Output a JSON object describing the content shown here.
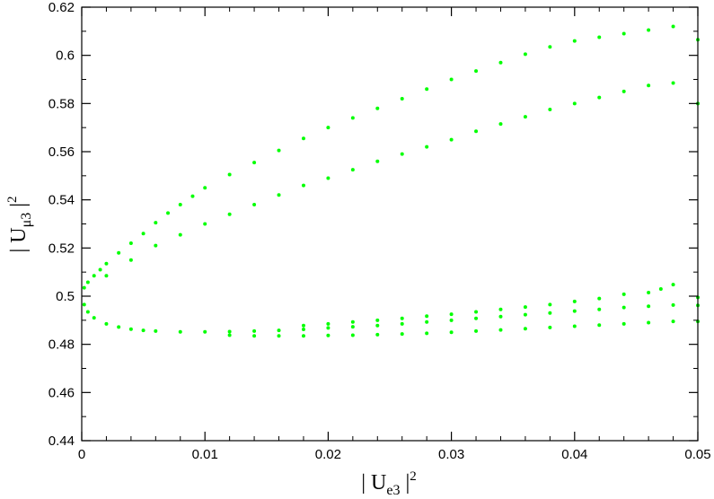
{
  "chart_data": {
    "type": "scatter",
    "title": "",
    "xlabel": "| U_e3 |^2",
    "ylabel": "| U_μ3 |^2",
    "xlabel_parts": {
      "bar_left": "|",
      "base": "U",
      "sub": "e3",
      "bar_right": "|",
      "sup": "2"
    },
    "ylabel_parts": {
      "bar_left": "|",
      "base": "U",
      "sub": "μ3",
      "bar_right": "|",
      "sup": "2"
    },
    "xlim": [
      0,
      0.05
    ],
    "ylim": [
      0.44,
      0.62
    ],
    "x_ticks": [
      {
        "v": 0,
        "label": "0"
      },
      {
        "v": 0.01,
        "label": "0.01"
      },
      {
        "v": 0.02,
        "label": "0.02"
      },
      {
        "v": 0.03,
        "label": "0.03"
      },
      {
        "v": 0.04,
        "label": "0.04"
      },
      {
        "v": 0.05,
        "label": "0.05"
      }
    ],
    "y_ticks": [
      {
        "v": 0.44,
        "label": "0.44"
      },
      {
        "v": 0.46,
        "label": "0.46"
      },
      {
        "v": 0.48,
        "label": "0.48"
      },
      {
        "v": 0.5,
        "label": "0.5"
      },
      {
        "v": 0.52,
        "label": "0.52"
      },
      {
        "v": 0.54,
        "label": "0.54"
      },
      {
        "v": 0.56,
        "label": "0.56"
      },
      {
        "v": 0.58,
        "label": "0.58"
      },
      {
        "v": 0.6,
        "label": "0.6"
      },
      {
        "v": 0.62,
        "label": "0.62"
      }
    ],
    "grid": false,
    "legend": "none",
    "marker_color": "#00ff00",
    "series": [
      {
        "points": [
          [
            0.0002,
            0.5035
          ],
          [
            0.0005,
            0.5058
          ],
          [
            0.001,
            0.5085
          ],
          [
            0.0015,
            0.511
          ],
          [
            0.002,
            0.5135
          ],
          [
            0.003,
            0.518
          ],
          [
            0.004,
            0.522
          ],
          [
            0.005,
            0.526
          ],
          [
            0.006,
            0.5305
          ],
          [
            0.007,
            0.5345
          ],
          [
            0.008,
            0.538
          ],
          [
            0.009,
            0.5415
          ],
          [
            0.01,
            0.545
          ],
          [
            0.012,
            0.5505
          ],
          [
            0.014,
            0.5555
          ],
          [
            0.016,
            0.5605
          ],
          [
            0.018,
            0.5655
          ],
          [
            0.02,
            0.57
          ],
          [
            0.022,
            0.574
          ],
          [
            0.024,
            0.578
          ],
          [
            0.026,
            0.582
          ],
          [
            0.028,
            0.586
          ],
          [
            0.03,
            0.59
          ],
          [
            0.032,
            0.5935
          ],
          [
            0.034,
            0.597
          ],
          [
            0.036,
            0.6005
          ],
          [
            0.038,
            0.6035
          ],
          [
            0.04,
            0.606
          ],
          [
            0.042,
            0.6075
          ],
          [
            0.044,
            0.609
          ],
          [
            0.046,
            0.6105
          ],
          [
            0.048,
            0.612
          ],
          [
            0.05,
            0.6065
          ],
          [
            0.002,
            0.5085
          ],
          [
            0.004,
            0.515
          ],
          [
            0.006,
            0.521
          ],
          [
            0.008,
            0.5255
          ],
          [
            0.01,
            0.53
          ],
          [
            0.012,
            0.534
          ],
          [
            0.014,
            0.538
          ],
          [
            0.016,
            0.542
          ],
          [
            0.018,
            0.546
          ],
          [
            0.02,
            0.549
          ],
          [
            0.022,
            0.5525
          ],
          [
            0.024,
            0.556
          ],
          [
            0.026,
            0.559
          ],
          [
            0.028,
            0.562
          ],
          [
            0.03,
            0.565
          ],
          [
            0.032,
            0.5685
          ],
          [
            0.034,
            0.5715
          ],
          [
            0.036,
            0.5745
          ],
          [
            0.038,
            0.5775
          ],
          [
            0.04,
            0.58
          ],
          [
            0.042,
            0.5825
          ],
          [
            0.044,
            0.585
          ],
          [
            0.046,
            0.5875
          ],
          [
            0.048,
            0.5885
          ],
          [
            0.05,
            0.58
          ],
          [
            0.0002,
            0.4965
          ],
          [
            0.0005,
            0.4935
          ],
          [
            0.001,
            0.491
          ],
          [
            0.002,
            0.4885
          ],
          [
            0.003,
            0.4872
          ],
          [
            0.004,
            0.4863
          ],
          [
            0.005,
            0.4858
          ],
          [
            0.006,
            0.4855
          ],
          [
            0.008,
            0.4852
          ],
          [
            0.01,
            0.4852
          ],
          [
            0.012,
            0.4853
          ],
          [
            0.014,
            0.4855
          ],
          [
            0.016,
            0.4858
          ],
          [
            0.018,
            0.4862
          ],
          [
            0.02,
            0.4868
          ],
          [
            0.022,
            0.4873
          ],
          [
            0.024,
            0.4878
          ],
          [
            0.026,
            0.4885
          ],
          [
            0.028,
            0.4893
          ],
          [
            0.03,
            0.49
          ],
          [
            0.032,
            0.4908
          ],
          [
            0.034,
            0.4915
          ],
          [
            0.036,
            0.4923
          ],
          [
            0.038,
            0.493
          ],
          [
            0.04,
            0.4938
          ],
          [
            0.042,
            0.4945
          ],
          [
            0.044,
            0.4953
          ],
          [
            0.046,
            0.4958
          ],
          [
            0.048,
            0.4963
          ],
          [
            0.05,
            0.4962
          ],
          [
            0.012,
            0.4838
          ],
          [
            0.014,
            0.4835
          ],
          [
            0.016,
            0.4835
          ],
          [
            0.018,
            0.4835
          ],
          [
            0.02,
            0.4837
          ],
          [
            0.022,
            0.4838
          ],
          [
            0.024,
            0.484
          ],
          [
            0.026,
            0.4843
          ],
          [
            0.028,
            0.4846
          ],
          [
            0.03,
            0.485
          ],
          [
            0.032,
            0.4855
          ],
          [
            0.034,
            0.486
          ],
          [
            0.036,
            0.4865
          ],
          [
            0.038,
            0.487
          ],
          [
            0.04,
            0.4875
          ],
          [
            0.042,
            0.488
          ],
          [
            0.044,
            0.4885
          ],
          [
            0.046,
            0.489
          ],
          [
            0.048,
            0.4895
          ],
          [
            0.05,
            0.4895
          ],
          [
            0.018,
            0.4878
          ],
          [
            0.02,
            0.4885
          ],
          [
            0.022,
            0.4893
          ],
          [
            0.024,
            0.49
          ],
          [
            0.026,
            0.4908
          ],
          [
            0.028,
            0.4917
          ],
          [
            0.03,
            0.4925
          ],
          [
            0.032,
            0.4935
          ],
          [
            0.034,
            0.4945
          ],
          [
            0.036,
            0.4955
          ],
          [
            0.038,
            0.4965
          ],
          [
            0.04,
            0.4978
          ],
          [
            0.042,
            0.499
          ],
          [
            0.044,
            0.5008
          ],
          [
            0.046,
            0.5015
          ],
          [
            0.047,
            0.503
          ],
          [
            0.048,
            0.5048
          ],
          [
            0.05,
            0.4995
          ]
        ]
      }
    ]
  }
}
